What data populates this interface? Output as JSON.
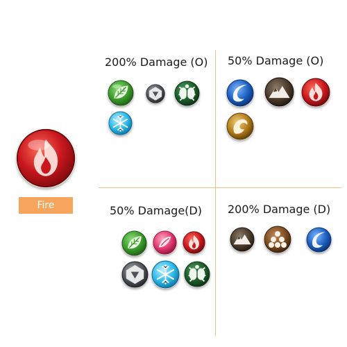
{
  "subject": {
    "label": "Fire",
    "label_color": "#f6a55d"
  },
  "quadrants": {
    "top_left": {
      "title": "200% Damage (O)",
      "icons": [
        "grass-icon",
        "steel-icon",
        "bug-icon",
        "ice-icon"
      ]
    },
    "top_right": {
      "title": "50% Damage (O)",
      "icons": [
        "water-icon",
        "rock-icon",
        "fire-icon",
        "dragon-icon"
      ]
    },
    "bottom_left": {
      "title": "50% Damage(D)",
      "icons": [
        "grass-icon",
        "fairy-icon",
        "fire-icon",
        "steel-icon",
        "ice-icon",
        "bug-icon"
      ]
    },
    "bottom_right": {
      "title": "200% Damage (D)",
      "icons": [
        "rock-icon",
        "ground-icon",
        "water-icon"
      ]
    }
  },
  "colors": {
    "divider": "#f0c08a",
    "fire": "#c8171d",
    "grass": "#3a9a2a",
    "water": "#1c5fc0",
    "ice": "#2ab8e8",
    "steel": "#4d5258",
    "bug": "#1d5c2b",
    "rock": "#5a4a3a",
    "dragon": "#b07a1a",
    "fairy": "#e0386e",
    "ground": "#7a4a20"
  }
}
